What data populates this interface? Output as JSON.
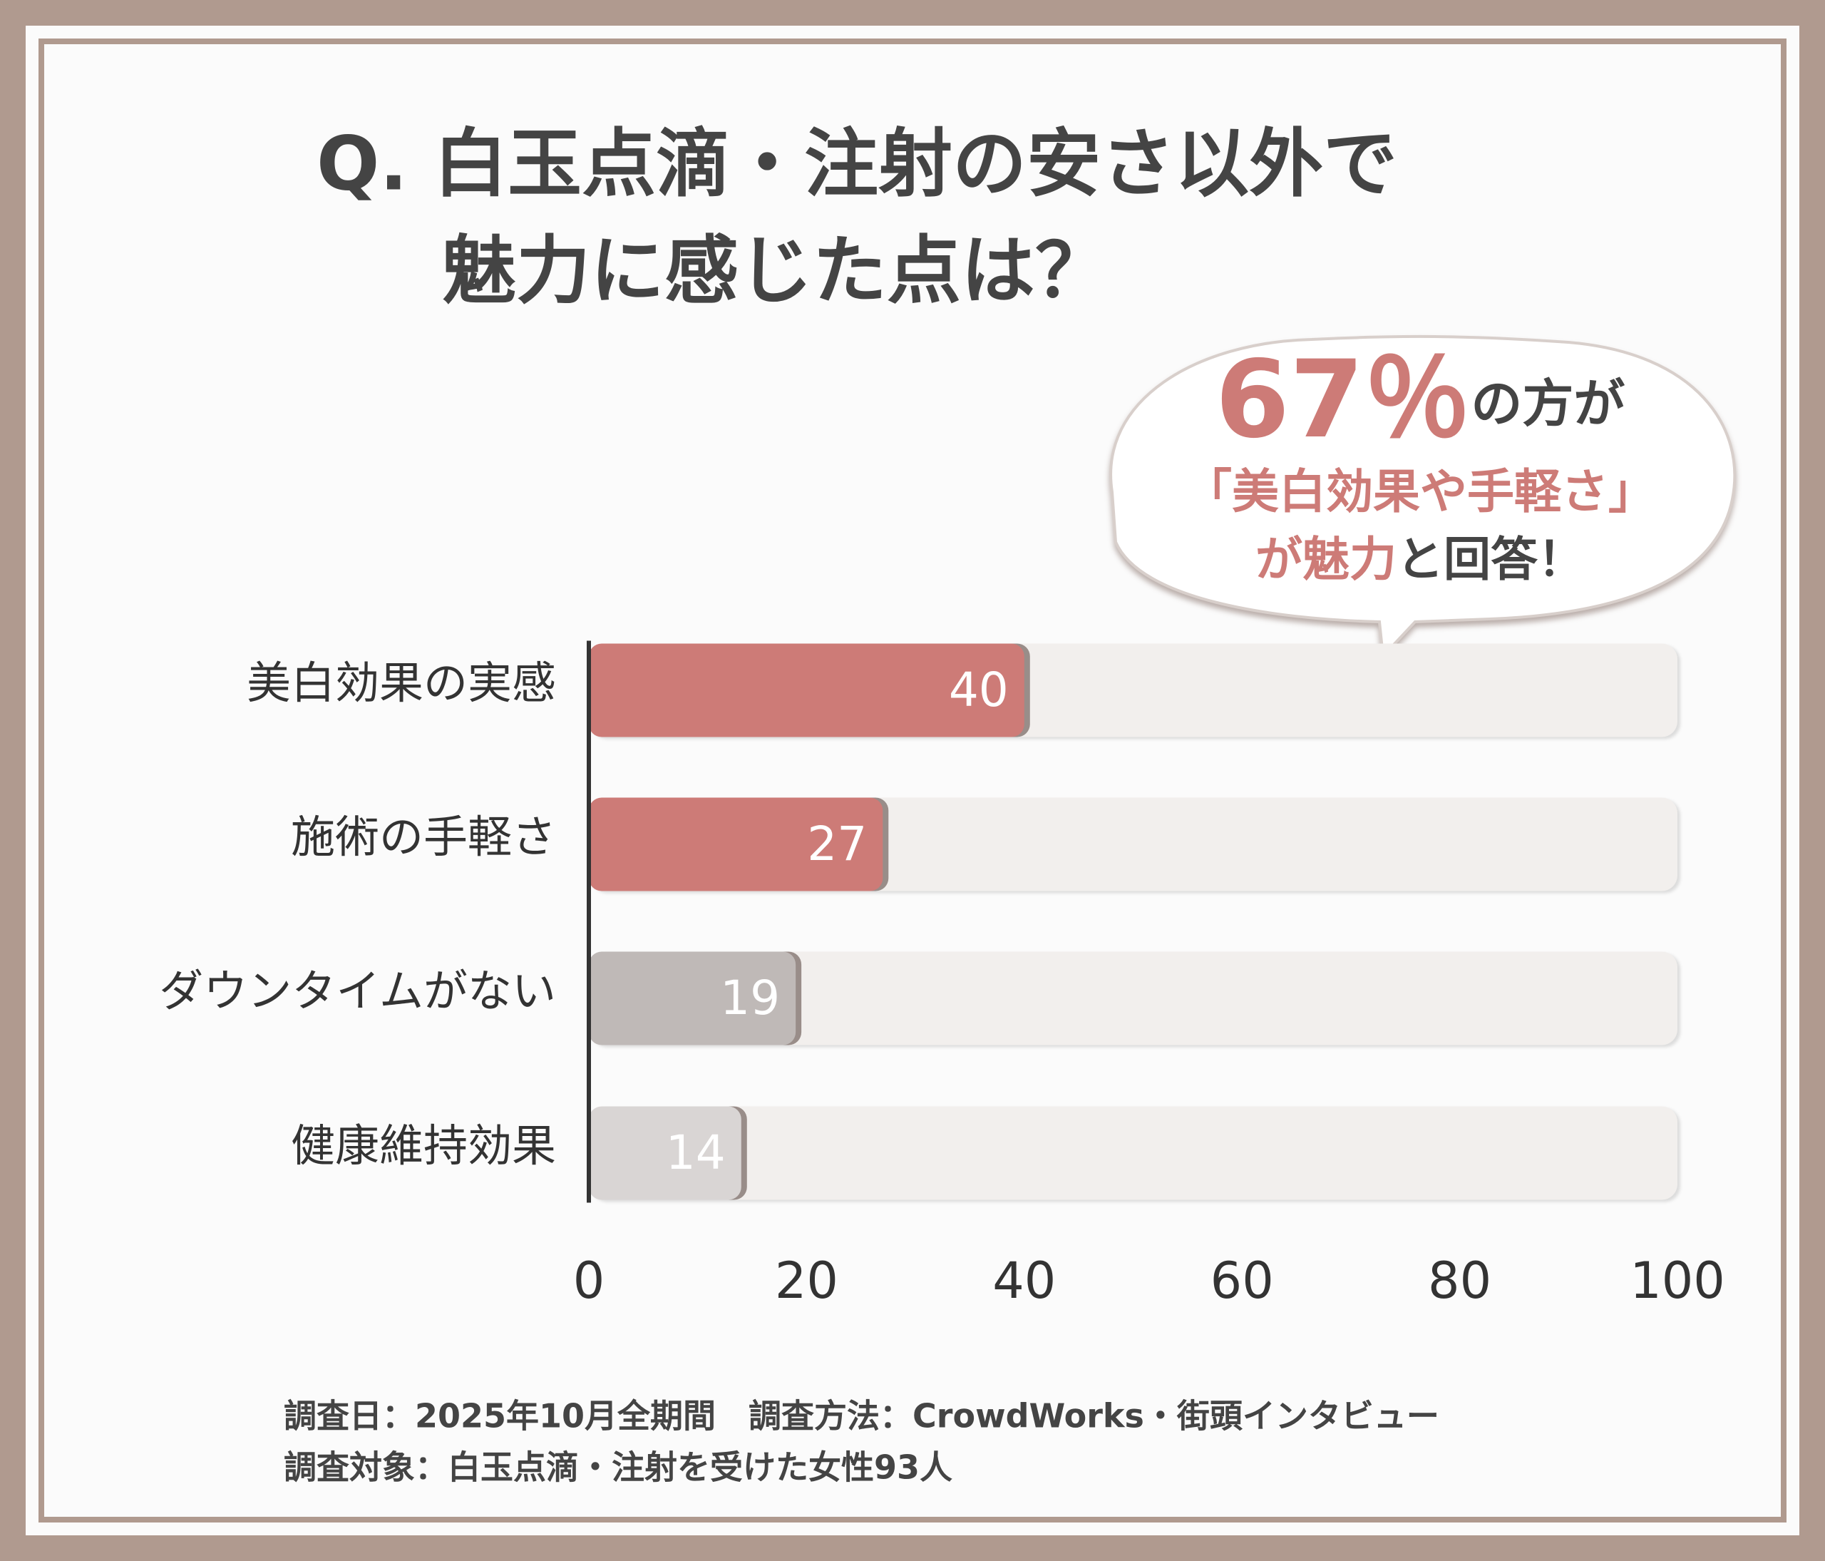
{
  "chart_data": {
    "type": "bar",
    "orientation": "horizontal",
    "title_lines": [
      "Q. 白玉点滴・注射の安さ以外で",
      "魅力に感じた点は？"
    ],
    "categories": [
      "美白効果の実感",
      "施術の手軽さ",
      "ダウンタイムがない",
      "健康維持効果"
    ],
    "values": [
      40,
      27,
      19,
      14
    ],
    "colors": [
      "#cd7b77",
      "#cd7b77",
      "#bfb9b7",
      "#d9d5d4"
    ],
    "track_color": "#f2efed",
    "xlim": [
      0,
      100
    ],
    "xticks": [
      0,
      20,
      40,
      60,
      80,
      100
    ],
    "callout": [
      [
        "67％",
        "の方が"
      ],
      [
        "「美白効果や手軽さ」"
      ],
      [
        "が魅力",
        "と回答！"
      ]
    ],
    "callout_colors": [
      [
        "#cd7b77",
        "#444444"
      ],
      [
        "#cd7b77"
      ],
      [
        "#cd7b77",
        "#444444"
      ]
    ],
    "notes": [
      "調査日：2025年10月全期間　調査方法：CrowdWorks・街頭インタビュー",
      "調査対象：白玉点滴・注射を受けた女性93人"
    ]
  }
}
